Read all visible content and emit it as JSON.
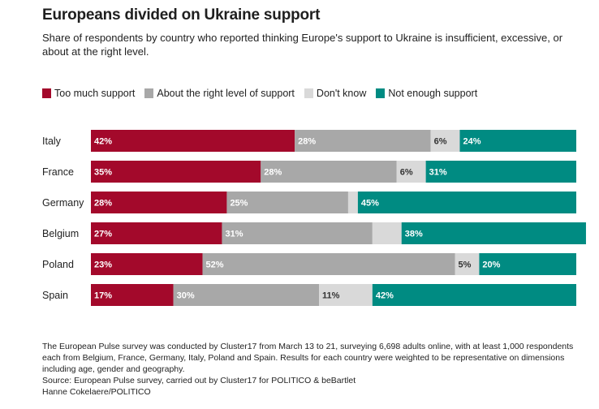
{
  "header": {
    "title": "Europeans divided on Ukraine support",
    "subtitle": "Share of respondents by country who reported thinking Europe's support to Ukraine is insufficient, excessive, or about at the right level."
  },
  "legend": [
    {
      "label": "Too much support",
      "color": "#a3092b"
    },
    {
      "label": "About the right level of support",
      "color": "#a8a8a8"
    },
    {
      "label": "Don't know",
      "color": "#d9d9d9"
    },
    {
      "label": "Not enough support",
      "color": "#008b82"
    }
  ],
  "chart_data": {
    "type": "bar",
    "orientation": "horizontal",
    "stacked": true,
    "normalized_to": 100,
    "categories": [
      "Italy",
      "France",
      "Germany",
      "Belgium",
      "Poland",
      "Spain"
    ],
    "series": [
      {
        "name": "Too much support",
        "color": "#a3092b",
        "text_color": "#ffffff",
        "values": [
          42,
          35,
          28,
          27,
          23,
          17
        ],
        "labels": [
          "42%",
          "35%",
          "28%",
          "27%",
          "23%",
          "17%"
        ]
      },
      {
        "name": "About the right level of support",
        "color": "#a8a8a8",
        "text_color": "#ffffff",
        "values": [
          28,
          28,
          25,
          31,
          52,
          30
        ],
        "labels": [
          "28%",
          "28%",
          "25%",
          "31%",
          "52%",
          "30%"
        ]
      },
      {
        "name": "Don't know",
        "color": "#d9d9d9",
        "text_color": "#333333",
        "values": [
          6,
          6,
          2,
          6,
          5,
          11
        ],
        "labels": [
          "6%",
          "6%",
          "",
          "",
          "5%",
          "11%"
        ]
      },
      {
        "name": "Not enough support",
        "color": "#008b82",
        "text_color": "#ffffff",
        "values": [
          24,
          31,
          45,
          38,
          20,
          42
        ],
        "labels": [
          "24%",
          "31%",
          "45%",
          "38%",
          "20%",
          "42%"
        ]
      }
    ]
  },
  "footer": {
    "note": "The European Pulse survey was conducted by Cluster17 from March 13 to 21, surveying 6,698 adults online, with at least 1,000 respondents each from Belgium, France, Germany, Italy, Poland and Spain. Results for each country were weighted to be representative on dimensions including age, gender and geography.",
    "source": "Source: European Pulse survey, carried out by Cluster17 for POLITICO & beBartlet",
    "credit": "Hanne Cokelaere/POLITICO"
  }
}
